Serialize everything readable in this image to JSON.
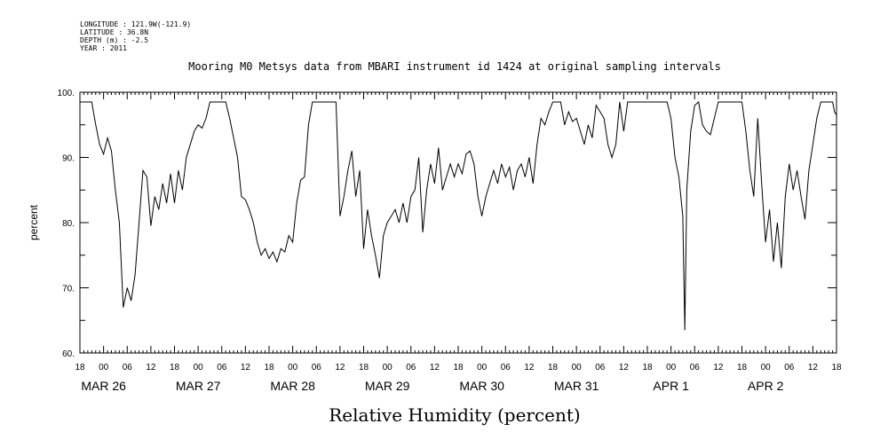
{
  "meta": {
    "longitude": "LONGITUDE : 121.9W(-121.9)",
    "latitude": "LATITUDE : 36.8N",
    "depth": "DEPTH (m) : -2.5",
    "year": "YEAR : 2011"
  },
  "chart_data": {
    "type": "line",
    "title": "Mooring M0 Metsys data from MBARI instrument id 1424 at original sampling intervals",
    "xlabel": "Relative Humidity (percent)",
    "ylabel": "percent",
    "ylim": [
      60,
      100
    ],
    "yticks": [
      "60.",
      "70.",
      "80.",
      "90.",
      "100."
    ],
    "xlim": [
      "2011-03-25 18:00",
      "2011-04-02 18:00"
    ],
    "hour_ticks": [
      "18",
      "00",
      "06",
      "12",
      "18",
      "00",
      "06",
      "12",
      "18",
      "00",
      "06",
      "12",
      "18",
      "00",
      "06",
      "12",
      "18",
      "00",
      "06",
      "12",
      "18",
      "00",
      "06",
      "12",
      "18",
      "00",
      "06",
      "12",
      "18",
      "00",
      "06",
      "12",
      "18"
    ],
    "date_labels": [
      "MAR 26",
      "MAR 27",
      "MAR 28",
      "MAR 29",
      "MAR 30",
      "MAR 31",
      "APR  1",
      "APR  2"
    ],
    "grid": false,
    "legend": "none",
    "series": [
      {
        "color": "#000000",
        "points": [
          [
            "2011-03-25 18:00",
            98.5
          ],
          [
            "2011-03-25 21:00",
            98.5
          ],
          [
            "2011-03-25 22:00",
            95.0
          ],
          [
            "2011-03-25 23:00",
            92.0
          ],
          [
            "2011-03-26 00:00",
            90.5
          ],
          [
            "2011-03-26 01:00",
            93.0
          ],
          [
            "2011-03-26 02:00",
            91.0
          ],
          [
            "2011-03-26 03:00",
            85.0
          ],
          [
            "2011-03-26 04:00",
            80.0
          ],
          [
            "2011-03-26 05:00",
            67.0
          ],
          [
            "2011-03-26 06:00",
            70.0
          ],
          [
            "2011-03-26 07:00",
            68.0
          ],
          [
            "2011-03-26 08:00",
            72.0
          ],
          [
            "2011-03-26 09:00",
            80.0
          ],
          [
            "2011-03-26 10:00",
            88.0
          ],
          [
            "2011-03-26 11:00",
            87.0
          ],
          [
            "2011-03-26 12:00",
            79.5
          ],
          [
            "2011-03-26 13:00",
            84.0
          ],
          [
            "2011-03-26 14:00",
            82.0
          ],
          [
            "2011-03-26 15:00",
            86.0
          ],
          [
            "2011-03-26 16:00",
            83.0
          ],
          [
            "2011-03-26 17:00",
            87.5
          ],
          [
            "2011-03-26 18:00",
            83.0
          ],
          [
            "2011-03-26 19:00",
            88.0
          ],
          [
            "2011-03-26 20:00",
            85.0
          ],
          [
            "2011-03-26 21:00",
            90.0
          ],
          [
            "2011-03-26 22:00",
            92.0
          ],
          [
            "2011-03-26 23:00",
            94.0
          ],
          [
            "2011-03-27 00:00",
            95.0
          ],
          [
            "2011-03-27 01:00",
            94.5
          ],
          [
            "2011-03-27 02:00",
            96.0
          ],
          [
            "2011-03-27 03:00",
            98.5
          ],
          [
            "2011-03-27 07:00",
            98.5
          ],
          [
            "2011-03-27 08:00",
            96.0
          ],
          [
            "2011-03-27 09:00",
            93.0
          ],
          [
            "2011-03-27 10:00",
            90.0
          ],
          [
            "2011-03-27 11:00",
            84.0
          ],
          [
            "2011-03-27 12:00",
            83.5
          ],
          [
            "2011-03-27 13:00",
            82.0
          ],
          [
            "2011-03-27 14:00",
            80.0
          ],
          [
            "2011-03-27 15:00",
            77.0
          ],
          [
            "2011-03-27 16:00",
            75.0
          ],
          [
            "2011-03-27 17:00",
            76.0
          ],
          [
            "2011-03-27 18:00",
            74.5
          ],
          [
            "2011-03-27 19:00",
            75.5
          ],
          [
            "2011-03-27 20:00",
            74.0
          ],
          [
            "2011-03-27 21:00",
            76.0
          ],
          [
            "2011-03-27 22:00",
            75.5
          ],
          [
            "2011-03-27 23:00",
            78.0
          ],
          [
            "2011-03-28 00:00",
            77.0
          ],
          [
            "2011-03-28 01:00",
            83.0
          ],
          [
            "2011-03-28 02:00",
            86.5
          ],
          [
            "2011-03-28 03:00",
            87.0
          ],
          [
            "2011-03-28 04:00",
            95.0
          ],
          [
            "2011-03-28 05:00",
            98.5
          ],
          [
            "2011-03-28 11:00",
            98.5
          ],
          [
            "2011-03-28 12:00",
            81.0
          ],
          [
            "2011-03-28 13:00",
            84.0
          ],
          [
            "2011-03-28 14:00",
            88.0
          ],
          [
            "2011-03-28 15:00",
            91.0
          ],
          [
            "2011-03-28 16:00",
            84.0
          ],
          [
            "2011-03-28 17:00",
            88.0
          ],
          [
            "2011-03-28 18:00",
            76.0
          ],
          [
            "2011-03-28 19:00",
            82.0
          ],
          [
            "2011-03-28 20:00",
            78.0
          ],
          [
            "2011-03-28 21:00",
            75.0
          ],
          [
            "2011-03-28 22:00",
            71.5
          ],
          [
            "2011-03-28 23:00",
            78.0
          ],
          [
            "2011-03-29 00:00",
            80.0
          ],
          [
            "2011-03-29 01:00",
            81.0
          ],
          [
            "2011-03-29 02:00",
            82.0
          ],
          [
            "2011-03-29 03:00",
            80.0
          ],
          [
            "2011-03-29 04:00",
            83.0
          ],
          [
            "2011-03-29 05:00",
            80.0
          ],
          [
            "2011-03-29 06:00",
            84.0
          ],
          [
            "2011-03-29 07:00",
            85.0
          ],
          [
            "2011-03-29 08:00",
            90.0
          ],
          [
            "2011-03-29 09:00",
            78.5
          ],
          [
            "2011-03-29 10:00",
            85.0
          ],
          [
            "2011-03-29 11:00",
            89.0
          ],
          [
            "2011-03-29 12:00",
            86.0
          ],
          [
            "2011-03-29 13:00",
            91.5
          ],
          [
            "2011-03-29 14:00",
            85.0
          ],
          [
            "2011-03-29 15:00",
            87.0
          ],
          [
            "2011-03-29 16:00",
            89.0
          ],
          [
            "2011-03-29 17:00",
            87.0
          ],
          [
            "2011-03-29 18:00",
            89.0
          ],
          [
            "2011-03-29 19:00",
            87.5
          ],
          [
            "2011-03-29 20:00",
            90.5
          ],
          [
            "2011-03-29 21:00",
            91.0
          ],
          [
            "2011-03-29 22:00",
            89.0
          ],
          [
            "2011-03-29 23:00",
            84.0
          ],
          [
            "2011-03-30 00:00",
            81.0
          ],
          [
            "2011-03-30 01:00",
            84.0
          ],
          [
            "2011-03-30 02:00",
            86.0
          ],
          [
            "2011-03-30 03:00",
            88.0
          ],
          [
            "2011-03-30 04:00",
            86.0
          ],
          [
            "2011-03-30 05:00",
            89.0
          ],
          [
            "2011-03-30 06:00",
            87.0
          ],
          [
            "2011-03-30 07:00",
            88.5
          ],
          [
            "2011-03-30 08:00",
            85.0
          ],
          [
            "2011-03-30 09:00",
            88.0
          ],
          [
            "2011-03-30 10:00",
            89.0
          ],
          [
            "2011-03-30 11:00",
            87.0
          ],
          [
            "2011-03-30 12:00",
            90.0
          ],
          [
            "2011-03-30 13:00",
            86.0
          ],
          [
            "2011-03-30 14:00",
            92.0
          ],
          [
            "2011-03-30 15:00",
            96.0
          ],
          [
            "2011-03-30 16:00",
            95.0
          ],
          [
            "2011-03-30 17:00",
            97.0
          ],
          [
            "2011-03-30 18:00",
            98.5
          ],
          [
            "2011-03-30 20:00",
            98.5
          ],
          [
            "2011-03-30 21:00",
            95.0
          ],
          [
            "2011-03-30 22:00",
            97.0
          ],
          [
            "2011-03-30 23:00",
            95.5
          ],
          [
            "2011-03-31 00:00",
            96.0
          ],
          [
            "2011-03-31 01:00",
            94.0
          ],
          [
            "2011-03-31 02:00",
            92.0
          ],
          [
            "2011-03-31 03:00",
            95.0
          ],
          [
            "2011-03-31 04:00",
            93.0
          ],
          [
            "2011-03-31 05:00",
            98.0
          ],
          [
            "2011-03-31 06:00",
            97.0
          ],
          [
            "2011-03-31 07:00",
            96.0
          ],
          [
            "2011-03-31 08:00",
            92.0
          ],
          [
            "2011-03-31 09:00",
            90.0
          ],
          [
            "2011-03-31 10:00",
            92.0
          ],
          [
            "2011-03-31 11:00",
            98.5
          ],
          [
            "2011-03-31 12:00",
            94.0
          ],
          [
            "2011-03-31 13:00",
            98.5
          ],
          [
            "2011-03-31 23:00",
            98.5
          ],
          [
            "2011-04-01 00:00",
            96.0
          ],
          [
            "2011-04-01 01:00",
            90.0
          ],
          [
            "2011-04-01 02:00",
            87.0
          ],
          [
            "2011-04-01 03:00",
            81.0
          ],
          [
            "2011-04-01 03:30",
            63.5
          ],
          [
            "2011-04-01 04:00",
            85.0
          ],
          [
            "2011-04-01 05:00",
            94.0
          ],
          [
            "2011-04-01 06:00",
            98.0
          ],
          [
            "2011-04-01 07:00",
            98.5
          ],
          [
            "2011-04-01 08:00",
            95.0
          ],
          [
            "2011-04-01 09:00",
            94.0
          ],
          [
            "2011-04-01 10:00",
            93.5
          ],
          [
            "2011-04-01 11:00",
            96.0
          ],
          [
            "2011-04-01 12:00",
            98.5
          ],
          [
            "2011-04-01 18:00",
            98.5
          ],
          [
            "2011-04-01 19:00",
            94.0
          ],
          [
            "2011-04-01 20:00",
            88.0
          ],
          [
            "2011-04-01 21:00",
            84.0
          ],
          [
            "2011-04-01 22:00",
            96.0
          ],
          [
            "2011-04-01 23:00",
            86.0
          ],
          [
            "2011-04-02 00:00",
            77.0
          ],
          [
            "2011-04-02 01:00",
            82.0
          ],
          [
            "2011-04-02 02:00",
            74.0
          ],
          [
            "2011-04-02 03:00",
            80.0
          ],
          [
            "2011-04-02 04:00",
            73.0
          ],
          [
            "2011-04-02 05:00",
            84.0
          ],
          [
            "2011-04-02 06:00",
            89.0
          ],
          [
            "2011-04-02 07:00",
            85.0
          ],
          [
            "2011-04-02 08:00",
            88.0
          ],
          [
            "2011-04-02 09:00",
            84.0
          ],
          [
            "2011-04-02 10:00",
            80.5
          ],
          [
            "2011-04-02 11:00",
            88.0
          ],
          [
            "2011-04-02 12:00",
            92.0
          ],
          [
            "2011-04-02 13:00",
            96.0
          ],
          [
            "2011-04-02 14:00",
            98.5
          ],
          [
            "2011-04-02 17:00",
            98.5
          ],
          [
            "2011-04-02 17:30",
            97.0
          ],
          [
            "2011-04-02 18:00",
            96.5
          ]
        ]
      }
    ]
  }
}
